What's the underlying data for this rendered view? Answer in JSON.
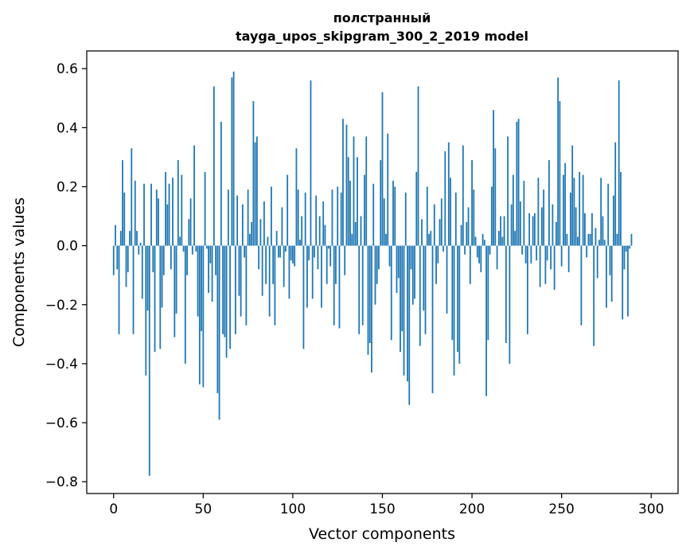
{
  "chart_data": {
    "type": "bar",
    "title": [
      "полстранный",
      "tayga_upos_skipgram_300_2_2019 model"
    ],
    "xlabel": "Vector components",
    "ylabel": "Components values",
    "xlim": [
      -15,
      315
    ],
    "ylim": [
      -0.84,
      0.66
    ],
    "x_ticks": [
      0,
      50,
      100,
      150,
      200,
      250,
      300
    ],
    "x_tick_labels": [
      "0",
      "50",
      "100",
      "150",
      "200",
      "250",
      "300"
    ],
    "y_ticks": [
      -0.8,
      -0.6,
      -0.4,
      -0.2,
      0.0,
      0.2,
      0.4,
      0.6
    ],
    "y_tick_labels": [
      "−0.8",
      "−0.6",
      "−0.4",
      "−0.2",
      "0.0",
      "0.2",
      "0.4",
      "0.6"
    ],
    "grid": false,
    "bar_color": "#1f77b4",
    "values": [
      -0.1,
      0.07,
      -0.08,
      -0.3,
      0.05,
      0.29,
      0.18,
      -0.14,
      -0.09,
      0.05,
      0.33,
      -0.3,
      0.22,
      0.05,
      -0.03,
      0.01,
      -0.18,
      0.21,
      -0.44,
      -0.22,
      -0.78,
      0.21,
      -0.09,
      -0.36,
      0.19,
      0.16,
      -0.35,
      -0.21,
      -0.1,
      0.25,
      0.14,
      0.21,
      -0.08,
      0.23,
      -0.31,
      -0.23,
      0.29,
      0.03,
      0.24,
      -0.02,
      -0.4,
      -0.1,
      0.09,
      0.16,
      -0.03,
      0.34,
      -0.02,
      -0.24,
      -0.47,
      -0.29,
      -0.48,
      0.25,
      -0.01,
      -0.16,
      -0.06,
      -0.19,
      0.54,
      -0.1,
      -0.5,
      -0.59,
      0.42,
      -0.3,
      -0.31,
      -0.38,
      0.19,
      -0.35,
      0.57,
      0.59,
      -0.3,
      0.17,
      -0.17,
      -0.24,
      0.14,
      -0.04,
      -0.27,
      0.19,
      0.04,
      0.08,
      0.49,
      0.35,
      0.37,
      -0.08,
      0.09,
      -0.17,
      0.15,
      -0.13,
      0.03,
      -0.24,
      0.2,
      -0.13,
      -0.27,
      0.05,
      -0.04,
      -0.04,
      0.13,
      -0.14,
      -0.02,
      0.24,
      -0.18,
      -0.05,
      -0.06,
      -0.07,
      0.33,
      0.19,
      0.02,
      0.1,
      -0.35,
      0.18,
      -0.21,
      -0.05,
      0.56,
      -0.18,
      -0.04,
      0.17,
      -0.08,
      0.1,
      -0.21,
      0.15,
      0.07,
      -0.13,
      -0.01,
      -0.07,
      0.19,
      -0.27,
      -0.13,
      0.2,
      -0.28,
      0.18,
      0.43,
      -0.1,
      0.41,
      0.3,
      0.22,
      0.04,
      0.37,
      0.08,
      0.3,
      -0.3,
      0.1,
      -0.27,
      0.24,
      0.37,
      -0.37,
      -0.33,
      -0.43,
      0.21,
      -0.2,
      -0.13,
      -0.08,
      0.29,
      0.52,
      0.16,
      0.04,
      0.38,
      -0.07,
      -0.32,
      0.22,
      0.2,
      -0.16,
      -0.11,
      -0.36,
      -0.29,
      -0.44,
      0.18,
      -0.46,
      -0.54,
      -0.08,
      -0.2,
      -0.18,
      0.25,
      0.54,
      -0.34,
      0.09,
      -0.22,
      -0.3,
      0.2,
      0.04,
      0.05,
      -0.5,
      0.14,
      -0.13,
      -0.06,
      0.09,
      0.16,
      -0.02,
      0.32,
      -0.23,
      0.35,
      0.23,
      -0.32,
      -0.44,
      0.18,
      -0.36,
      -0.4,
      0.07,
      0.34,
      -0.03,
      0.08,
      0.13,
      -0.13,
      0.29,
      0.19,
      0.03,
      -0.04,
      -0.06,
      -0.09,
      0.04,
      0.02,
      -0.51,
      -0.32,
      -0.03,
      0.2,
      0.46,
      0.33,
      -0.08,
      0.05,
      0.1,
      0.03,
      0.1,
      -0.33,
      0.37,
      -0.4,
      0.14,
      0.24,
      0.05,
      0.42,
      0.43,
      0.15,
      -0.03,
      0.22,
      -0.06,
      -0.3,
      0.11,
      -0.06,
      0.1,
      0.11,
      -0.05,
      0.23,
      -0.14,
      0.13,
      0.19,
      -0.13,
      -0.05,
      0.29,
      -0.08,
      0.14,
      -0.15,
      0.08,
      0.57,
      0.49,
      -0.07,
      0.24,
      0.28,
      0.04,
      -0.09,
      0.18,
      0.34,
      0.23,
      0.13,
      0.03,
      0.25,
      -0.27,
      0.24,
      0.11,
      -0.04,
      0.04,
      0.04,
      0.11,
      -0.34,
      0.06,
      -0.11,
      0.02,
      0.23,
      0.1,
      0.02,
      -0.21,
      0.21,
      -0.1,
      -0.19,
      0.17,
      0.35,
      0.04,
      0.56,
      0.25,
      -0.25,
      -0.08,
      -0.02,
      -0.24,
      -0.01,
      0.04
    ]
  }
}
